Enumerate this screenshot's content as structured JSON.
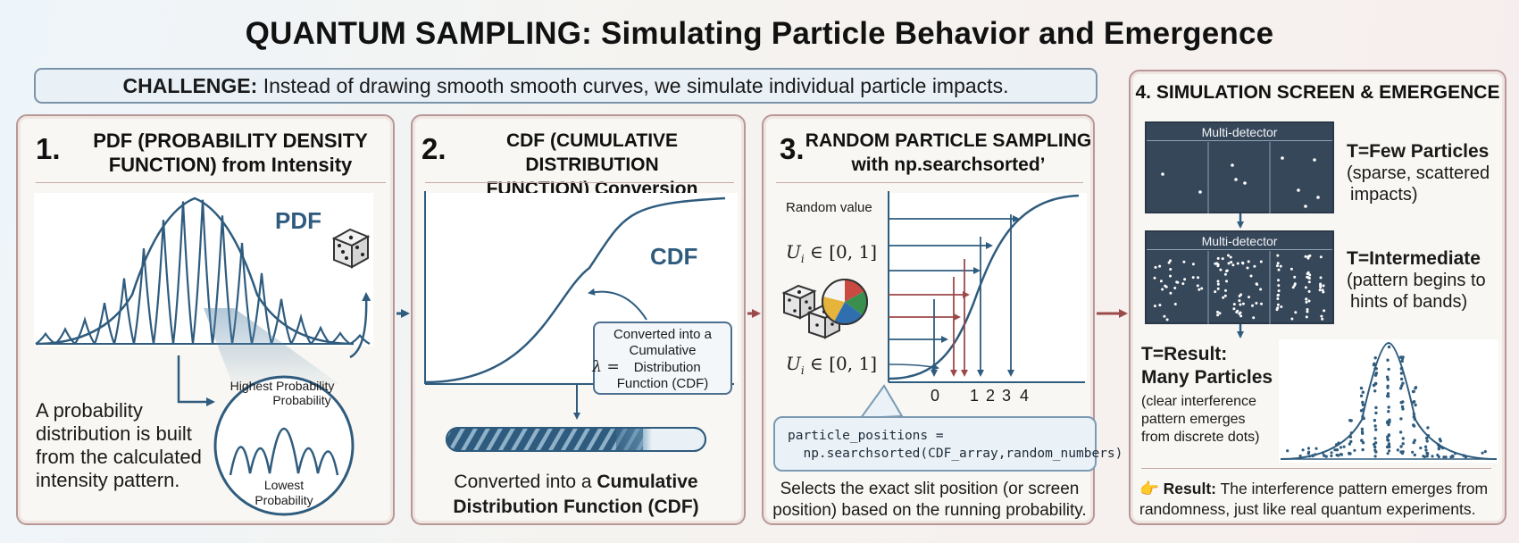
{
  "title": "QUANTUM SAMPLING: Simulating Particle Behavior and Emergence",
  "challenge": {
    "label": "CHALLENGE:",
    "text": "Instead of drawing smooth smooth curves, we simulate individual particle impacts."
  },
  "panel1": {
    "number": "1.",
    "title_line1": "PDF (PROBABILITY DENSITY",
    "title_line2": "FUNCTION) from Intensity",
    "plot_label": "PDF",
    "zoom_high_line1": "Highest Probability",
    "zoom_high_line2": "Probability",
    "zoom_low_line1": "Lowest",
    "zoom_low_line2": "Probability",
    "desc_line1": "A probability",
    "desc_line2": "distribution is built",
    "desc_line3": "from the calculated",
    "desc_line4": "intensity pattern."
  },
  "panel2": {
    "number": "2.",
    "title_line1": "CDF (CUMULATIVE DISTRIBUTION",
    "title_line2": "FUNCTION) Conversion",
    "plot_label": "CDF",
    "callout_line1": "Converted into a",
    "callout_line2": "Cumulative",
    "callout_lambda": "λ =",
    "callout_line3": "Distribution",
    "callout_line4": "Function (CDF)",
    "caption_pre": "Converted into a ",
    "caption_bold": "Cumulative",
    "caption_line2": "Distribution Function (CDF)"
  },
  "panel3": {
    "number": "3.",
    "title_line1": "RANDOM PARTICLE SAMPLING",
    "title_line2": "with np.searchsorted’",
    "random_value_label": "Random value",
    "u_label_top": "U",
    "u_label_top_sub": "i",
    "u_label_top_rest": " ∈ [0, 1]",
    "u_label_bottom": "U",
    "u_label_bottom_sub": "i",
    "u_label_bottom_rest": " ∈ [0, 1]",
    "x_ticks": [
      "0",
      "1",
      "2",
      "3",
      "4"
    ],
    "code": "particle_positions =\n  np.searchsorted(CDF_array,random_numbers)",
    "caption_line1": "Selects the exact slit position (or screen",
    "caption_line2": "position) based on the running probability."
  },
  "panel4": {
    "title": "4. SIMULATION SCREEN & EMERGENCE",
    "detector_label_1": "Multi-detector",
    "detector_label_2": "Multi-detector",
    "few_title": "T=Few Particles",
    "few_desc_line1": "(sparse, scattered",
    "few_desc_line2": "impacts)",
    "mid_title": "T=Intermediate",
    "mid_desc_line1": "(pattern begins to",
    "mid_desc_line2": "hints of bands)",
    "result_title_line1": "T=Result:",
    "result_title_line2": "Many Particles",
    "result_desc_line1": "(clear interference",
    "result_desc_line2": "pattern emerges",
    "result_desc_line3": "from discrete dots)",
    "result_icon": "👉",
    "result_label": "Result:",
    "result_text_line1": " The interference pattern emerges from",
    "result_text_line2": "randomness, just like real quantum experiments."
  },
  "colors": {
    "curve": "#2f5c7e",
    "accent_red": "#9b4a4a",
    "panel_border": "#b89797",
    "detector_bg": "#37475a"
  }
}
